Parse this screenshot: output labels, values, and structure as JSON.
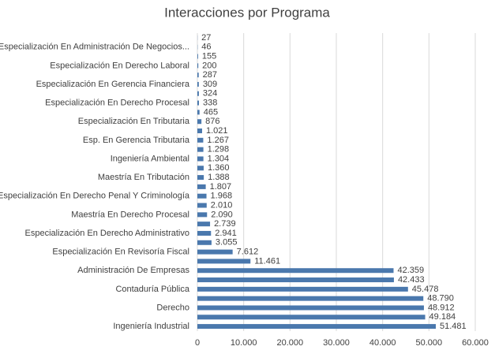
{
  "chart_data": {
    "type": "bar",
    "orientation": "horizontal",
    "title": "Interacciones por Programa",
    "categories": [
      "Especialización En Administración De Negocios...",
      null,
      "Especialización En Derecho Laboral",
      null,
      "Especialización En Gerencia Financiera",
      null,
      "Especialización En Derecho Procesal",
      null,
      "Especialización En Tributaria",
      null,
      "Esp. En Gerencia Tributaria",
      null,
      "Ingeniería Ambiental",
      null,
      "Maestría En Tributación",
      null,
      "Especialización En Derecho Penal Y Criminología",
      null,
      "Maestría En Derecho Procesal",
      null,
      "Especialización En Derecho Administrativo",
      null,
      "Especialización En Revisoría Fiscal",
      null,
      "Administración De Empresas",
      null,
      "Contaduría Pública",
      null,
      "Derecho",
      null,
      "Ingeniería Industrial"
    ],
    "values": [
      46,
      155,
      200,
      287,
      309,
      324,
      338,
      465,
      876,
      1021,
      1267,
      1298,
      1304,
      1360,
      1388,
      1807,
      1968,
      2010,
      2090,
      2739,
      2941,
      3055,
      7612,
      11461,
      42359,
      42433,
      45478,
      48790,
      48912,
      49184,
      51481
    ],
    "value_labels": [
      "46",
      "155",
      "200",
      "287",
      "309",
      "324",
      "338",
      "465",
      "876",
      "1.021",
      "1.267",
      "1.298",
      "1.304",
      "1.360",
      "1.388",
      "1.807",
      "1.968",
      "2.010",
      "2.090",
      "2.739",
      "2.941",
      "3.055",
      "7.612",
      "11.461",
      "42.359",
      "42.433",
      "45.478",
      "48.790",
      "48.912",
      "49.184",
      "51.481"
    ],
    "extra_top": {
      "value": 27,
      "label": "27"
    },
    "color": "#4a78ad",
    "xlim": [
      0,
      60000
    ],
    "xticks": [
      0,
      {
        "value": 10000,
        "label": "10.000"
      },
      {
        "value": 20000,
        "label": "20.000"
      },
      {
        "value": 30000,
        "label": "30.000"
      },
      {
        "value": 40000,
        "label": "40.000"
      },
      {
        "value": 50000,
        "label": "50.000"
      },
      {
        "value": 60000,
        "label": "60.000"
      }
    ],
    "grid": true
  }
}
